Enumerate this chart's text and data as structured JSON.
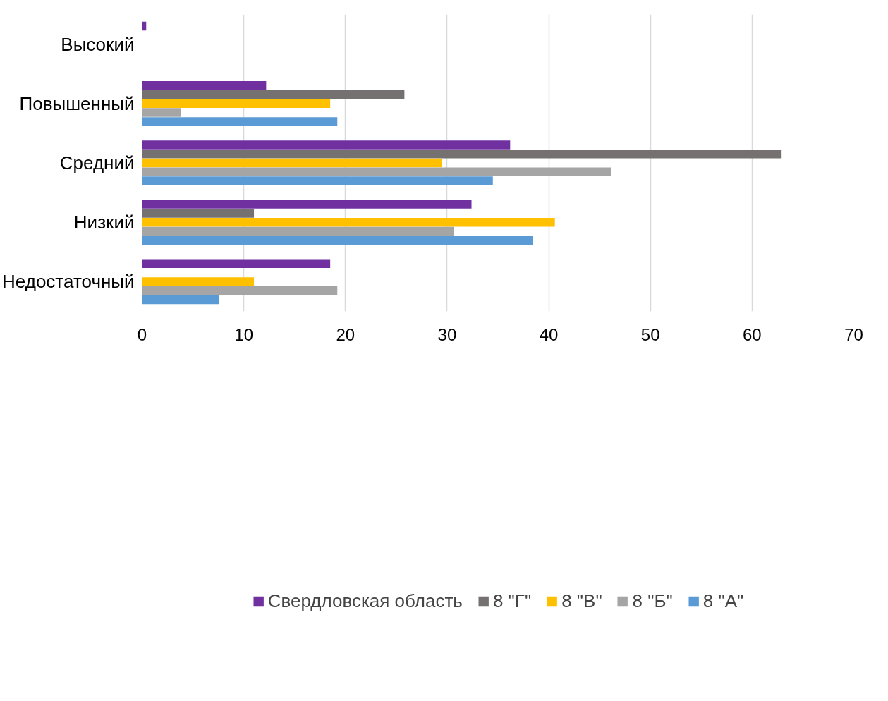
{
  "chart_data": {
    "type": "bar",
    "orientation": "horizontal",
    "categories": [
      "Высокий",
      "Повышенный",
      "Средний",
      "Низкий",
      "Недостаточный"
    ],
    "series": [
      {
        "name": "Свердловская область",
        "color": "#7030a0",
        "values": [
          0.4,
          12.2,
          36.2,
          32.4,
          18.5
        ]
      },
      {
        "name": "8 \"Г\"",
        "color": "#767171",
        "values": [
          0,
          25.8,
          62.9,
          11.0,
          0
        ]
      },
      {
        "name": "8 \"В\"",
        "color": "#ffc000",
        "values": [
          0,
          18.5,
          29.5,
          40.6,
          11.0
        ]
      },
      {
        "name": "8 \"Б\"",
        "color": "#a5a5a5",
        "values": [
          0,
          3.8,
          46.1,
          30.7,
          19.2
        ]
      },
      {
        "name": "8 \"А\"",
        "color": "#5b9bd5",
        "values": [
          0,
          19.2,
          34.5,
          38.4,
          7.6
        ]
      }
    ],
    "xlim": [
      0,
      70
    ],
    "xticks": [
      0,
      10,
      20,
      30,
      40,
      50,
      60,
      70
    ],
    "grid": "x",
    "legend": "bottom"
  }
}
